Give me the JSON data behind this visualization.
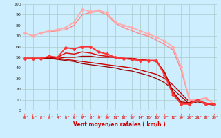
{
  "xlabel": "Vent moyen/en rafales ( km/h )",
  "background_color": "#cceeff",
  "grid_color": "#aacccc",
  "x": [
    0,
    1,
    2,
    3,
    4,
    5,
    6,
    7,
    8,
    9,
    10,
    11,
    12,
    13,
    14,
    15,
    16,
    17,
    18,
    19,
    20,
    21,
    22,
    23
  ],
  "series": [
    {
      "y": [
        73,
        70,
        73,
        75,
        76,
        78,
        83,
        95,
        93,
        94,
        92,
        83,
        80,
        78,
        75,
        72,
        69,
        65,
        60,
        41,
        10,
        10,
        12,
        6
      ],
      "color": "#ffaaaa",
      "lw": 1.2,
      "marker": "D",
      "ms": 2.0
    },
    {
      "y": [
        73,
        70,
        73,
        74,
        75,
        76,
        80,
        90,
        92,
        93,
        90,
        82,
        78,
        75,
        72,
        70,
        66,
        62,
        57,
        38,
        10,
        10,
        11,
        6
      ],
      "color": "#ff8888",
      "lw": 1.0,
      "marker": null,
      "ms": 0
    },
    {
      "y": [
        49,
        49,
        49,
        51,
        50,
        59,
        58,
        60,
        60,
        55,
        53,
        50,
        49,
        48,
        47,
        47,
        47,
        33,
        15,
        6,
        6,
        10,
        6,
        6
      ],
      "color": "#ff3333",
      "lw": 1.4,
      "marker": "D",
      "ms": 2.0
    },
    {
      "y": [
        49,
        49,
        49,
        50,
        50,
        54,
        53,
        55,
        54,
        52,
        51,
        50,
        49,
        49,
        48,
        47,
        47,
        35,
        17,
        7,
        7,
        10,
        6,
        6
      ],
      "color": "#dd1111",
      "lw": 1.1,
      "marker": null,
      "ms": 0
    },
    {
      "y": [
        49,
        49,
        49,
        50,
        49,
        50,
        50,
        51,
        51,
        50,
        50,
        50,
        49,
        49,
        48,
        47,
        46,
        36,
        18,
        8,
        7,
        10,
        6,
        6
      ],
      "color": "#aa0000",
      "lw": 0.9,
      "marker": null,
      "ms": 0
    },
    {
      "y": [
        49,
        49,
        49,
        49,
        49,
        48,
        47,
        46,
        45,
        44,
        43,
        42,
        41,
        40,
        38,
        36,
        34,
        30,
        24,
        16,
        8,
        9,
        7,
        6
      ],
      "color": "#cc0000",
      "lw": 1.0,
      "marker": null,
      "ms": 0
    },
    {
      "y": [
        49,
        49,
        49,
        49,
        48,
        47,
        46,
        44,
        43,
        42,
        41,
        40,
        38,
        37,
        35,
        33,
        30,
        26,
        20,
        13,
        6,
        8,
        6,
        5
      ],
      "color": "#990000",
      "lw": 0.9,
      "marker": null,
      "ms": 0
    }
  ],
  "ylim": [
    0,
    100
  ],
  "xlim": [
    -0.3,
    23.3
  ],
  "yticks": [
    0,
    10,
    20,
    30,
    40,
    50,
    60,
    70,
    80,
    90,
    100
  ],
  "xticks": [
    0,
    1,
    2,
    3,
    4,
    5,
    6,
    7,
    8,
    9,
    10,
    11,
    12,
    13,
    14,
    15,
    16,
    17,
    18,
    19,
    20,
    21,
    22,
    23
  ]
}
